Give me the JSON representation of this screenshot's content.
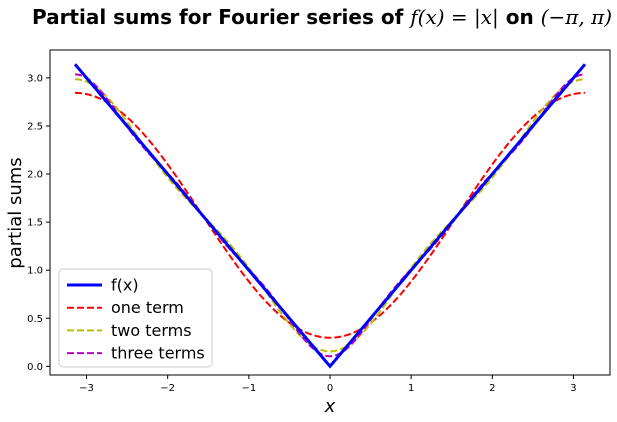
{
  "chart_data": {
    "type": "line",
    "title": {
      "prefix": "Partial sums for Fourier series of ",
      "math_func": "f(x) = |x|",
      "on": " on ",
      "math_interval": "(−π, π)"
    },
    "xlabel": "x",
    "ylabel": "partial sums",
    "xlim": [
      -3.45,
      3.45
    ],
    "ylim": [
      -0.09,
      3.29
    ],
    "x_ticks": [
      -3,
      -2,
      -1,
      0,
      1,
      2,
      3
    ],
    "x_tick_labels": [
      "−3",
      "−2",
      "−1",
      "0",
      "1",
      "2",
      "3"
    ],
    "y_ticks": [
      0.0,
      0.5,
      1.0,
      1.5,
      2.0,
      2.5,
      3.0
    ],
    "y_tick_labels": [
      "0.0",
      "0.5",
      "1.0",
      "1.5",
      "2.0",
      "2.5",
      "3.0"
    ],
    "grid": false,
    "legend_position": "lower-left",
    "x_range": [
      -3.14159,
      3.14159
    ],
    "series": [
      {
        "name": "f(x)",
        "color": "#0000ff",
        "style": "solid",
        "terms": 0
      },
      {
        "name": "one term",
        "color": "#ff0000",
        "style": "dashed",
        "terms": 1
      },
      {
        "name": "two terms",
        "color": "#bfbf00",
        "style": "dashed",
        "terms": 2
      },
      {
        "name": "three terms",
        "color": "#bf00bf",
        "style": "dashed",
        "terms": 3
      }
    ]
  }
}
